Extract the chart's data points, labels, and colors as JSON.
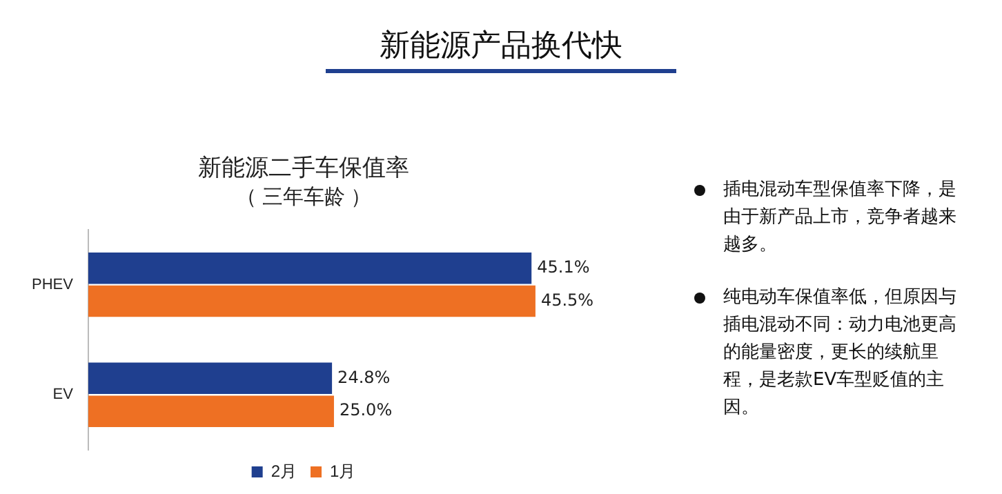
{
  "chart_data": {
    "type": "bar",
    "orientation": "horizontal",
    "title": "新能源二手车保值率",
    "subtitle": "（ 三年车龄 ）",
    "categories": [
      "PHEV",
      "EV"
    ],
    "series": [
      {
        "name": "2月",
        "color": "#1f3f8f",
        "values": [
          45.1,
          24.8
        ],
        "value_labels": [
          "45.1%",
          "24.8%"
        ]
      },
      {
        "name": "1月",
        "color": "#ee7023",
        "values": [
          45.5,
          25.0
        ],
        "value_labels": [
          "45.5%",
          "25.0%"
        ]
      }
    ],
    "legend": "bottom",
    "grid": false,
    "tick_labels": "y",
    "annotations": [
      "新能源产品换代快",
      "插电混动车型保值率下降，是由于新产品上市，竞争者越来越多。",
      "纯电动车保值率低，但原因与插电混动不同：动力电池更高的能量密度，更长的续航里程，是老款EV车型贬值的主因。"
    ]
  }
}
